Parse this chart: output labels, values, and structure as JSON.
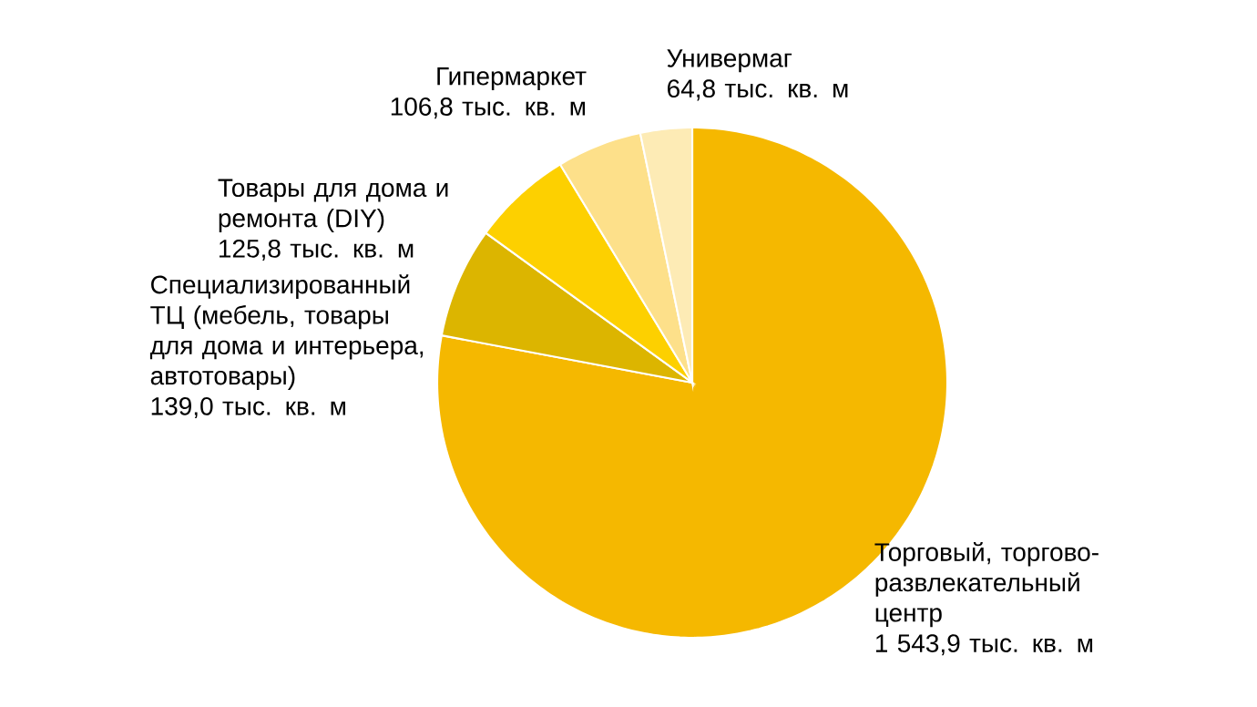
{
  "chart_data": {
    "type": "pie",
    "categories": [
      "Торговый, торгово-развлекательный центр",
      "Специализированный ТЦ (мебель, товары для дома и интерьера, автотовары)",
      "Товары для дома и ремонта (DIY)",
      "Гипермаркет",
      "Универмаг"
    ],
    "values": [
      1543.9,
      139.0,
      125.8,
      106.8,
      64.8
    ],
    "value_labels": [
      "1 543,9 тыс. кв. м",
      "139,0 тыс. кв. м",
      "125,8 тыс. кв. м",
      "106,8 тыс. кв. м",
      "64,8 тыс. кв. м"
    ],
    "colors": [
      "#f5b800",
      "#dcb500",
      "#fdd000",
      "#fde08a",
      "#fdebb5"
    ]
  }
}
